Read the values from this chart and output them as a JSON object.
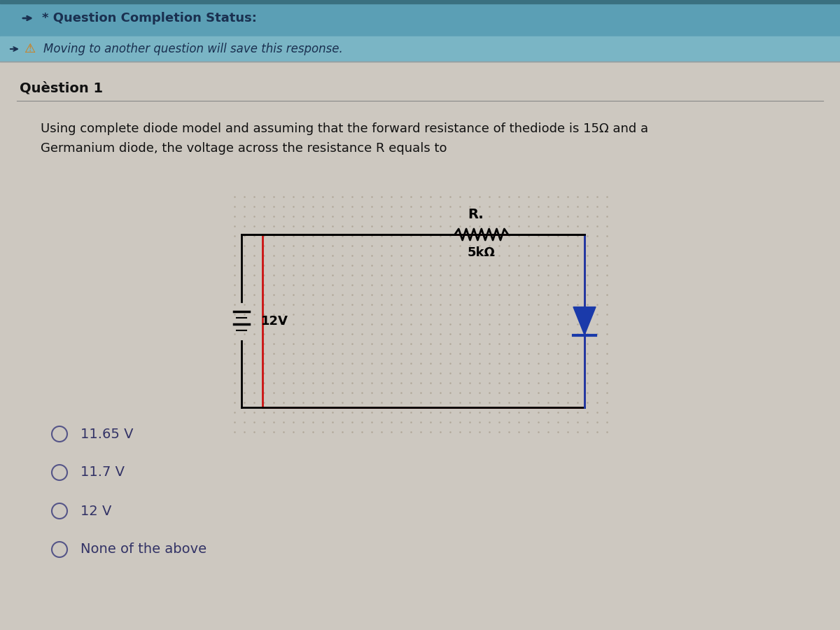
{
  "header_bg_color": "#5b9fb5",
  "header_text": "* Question Completion Status:",
  "header_text_color": "#1a3050",
  "subheader_bg_color": "#7ab5c5",
  "subheader_text": "Moving to another question will save this response.",
  "subheader_text_color": "#1a3050",
  "body_bg_color": "#cdc8c0",
  "question_label": "Quèstion 1",
  "question_label_color": "#111111",
  "question_text_line1": "Using complete diode model and assuming that the forward resistance of thediode is 15Ω and a",
  "question_text_line2": "Germanium diode, the voltage across the resistance R equals to",
  "question_text_color": "#111111",
  "circuit_box_color": "#cc1111",
  "circuit_dot_color": "#aaa090",
  "resistor_label": "R.",
  "resistor_value": "5kΩ",
  "voltage_label": "12V",
  "wire_color": "#000000",
  "diode_color": "#1a3aaa",
  "options": [
    {
      "label": "11.65 V"
    },
    {
      "label": "11.7 V"
    },
    {
      "label": "12 V"
    },
    {
      "label": "None of the above"
    }
  ],
  "options_text_color": "#333366",
  "circle_color": "#555588",
  "fig_width": 12.0,
  "fig_height": 9.0
}
